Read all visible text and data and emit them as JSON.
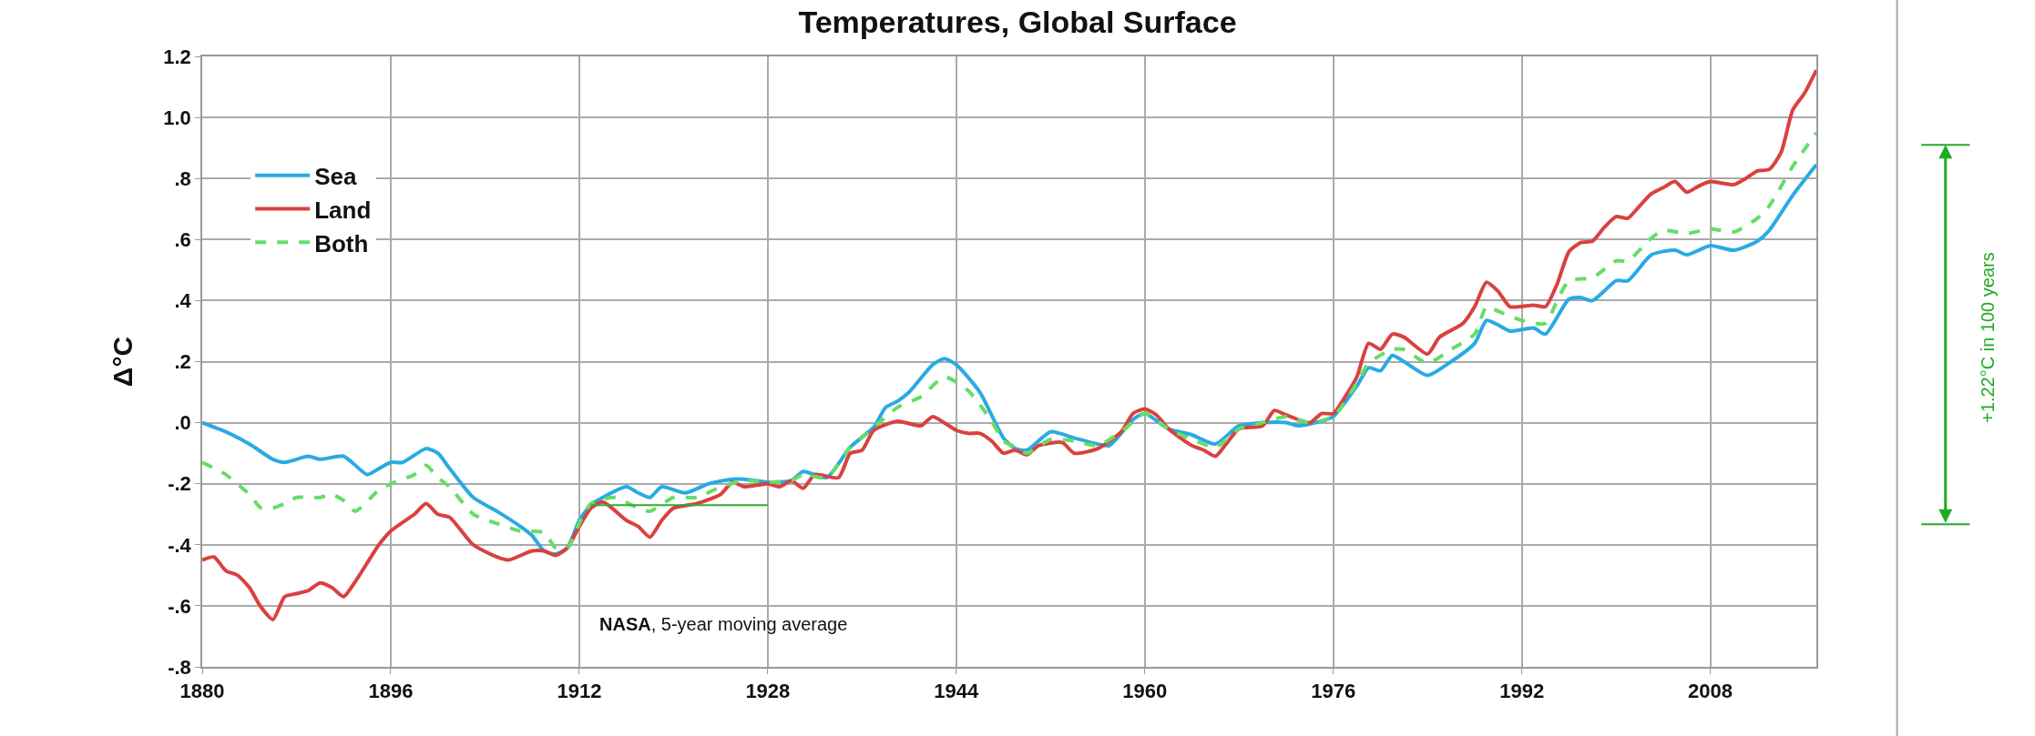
{
  "chart_data": {
    "type": "line",
    "title": "Temperatures, Global Surface",
    "ylabel": "Δ°C",
    "xlim": [
      1880,
      2017
    ],
    "xticks": [
      1880,
      1896,
      1912,
      1928,
      1944,
      1960,
      1976,
      1992,
      2008
    ],
    "ylim": [
      -0.8,
      1.2
    ],
    "yticks": [
      1.2,
      {
        "value": 1,
        "label": "1.0"
      },
      {
        "value": 0.8,
        "label": ".8"
      },
      {
        "value": 0.6,
        "label": ".6"
      },
      {
        "value": 0.4,
        "label": ".4"
      },
      {
        "value": 0.2,
        "label": ".2"
      },
      {
        "value": 0,
        "label": ".0"
      },
      {
        "value": -0.2,
        "label": "-.2"
      },
      {
        "value": -0.4,
        "label": "-.4"
      },
      {
        "value": -0.6,
        "label": "-.6"
      },
      {
        "value": -0.8,
        "label": "-.8"
      }
    ],
    "grid": true,
    "legend": "top left",
    "annotations": [
      "NASA, 5-year moving average",
      "+1.22°C in 100 years"
    ],
    "series": [
      {
        "name": "Sea",
        "color": "#29abe2",
        "line_style": "solid",
        "x": [
          1880,
          1882,
          1884,
          1886,
          1887,
          1889,
          1890,
          1892,
          1894,
          1895,
          1896,
          1897,
          1899,
          1900,
          1901,
          1903,
          1905,
          1907,
          1908,
          1909,
          1910,
          1911,
          1912,
          1913,
          1914,
          1916,
          1917,
          1918,
          1919,
          1921,
          1923,
          1925,
          1926,
          1928,
          1930,
          1931,
          1933,
          1935,
          1937,
          1938,
          1939,
          1940,
          1942,
          1943,
          1944,
          1946,
          1948,
          1949,
          1950,
          1952,
          1954,
          1956,
          1957,
          1959,
          1960,
          1962,
          1964,
          1966,
          1968,
          1970,
          1972,
          1973,
          1975,
          1976,
          1978,
          1979,
          1980,
          1981,
          1982,
          1984,
          1986,
          1988,
          1989,
          1990,
          1991,
          1993,
          1994,
          1996,
          1997,
          1998,
          2000,
          2001,
          2003,
          2005,
          2006,
          2008,
          2010,
          2012,
          2013,
          2015,
          2017
        ],
        "values": [
          0.0,
          -0.03,
          -0.07,
          -0.12,
          -0.13,
          -0.11,
          -0.12,
          -0.11,
          -0.17,
          -0.15,
          -0.13,
          -0.13,
          -0.085,
          -0.1,
          -0.15,
          -0.245,
          -0.29,
          -0.34,
          -0.37,
          -0.42,
          -0.43,
          -0.41,
          -0.32,
          -0.27,
          -0.245,
          -0.21,
          -0.23,
          -0.245,
          -0.21,
          -0.23,
          -0.2,
          -0.185,
          -0.185,
          -0.195,
          -0.19,
          -0.16,
          -0.18,
          -0.08,
          -0.015,
          0.05,
          0.07,
          0.1,
          0.19,
          0.21,
          0.19,
          0.1,
          -0.05,
          -0.085,
          -0.09,
          -0.03,
          -0.05,
          -0.07,
          -0.075,
          0.01,
          0.03,
          -0.02,
          -0.04,
          -0.07,
          -0.01,
          0.0,
          0.0,
          -0.01,
          0.005,
          0.02,
          0.12,
          0.18,
          0.17,
          0.22,
          0.2,
          0.155,
          0.2,
          0.26,
          0.335,
          0.32,
          0.3,
          0.31,
          0.29,
          0.405,
          0.41,
          0.4,
          0.465,
          0.465,
          0.55,
          0.565,
          0.55,
          0.58,
          0.565,
          0.595,
          0.63,
          0.745,
          0.845
        ]
      },
      {
        "name": "Land",
        "color": "#d9413f",
        "line_style": "solid",
        "x": [
          1880,
          1881,
          1882,
          1883,
          1884,
          1885,
          1886,
          1887,
          1888,
          1889,
          1890,
          1891,
          1892,
          1893,
          1895,
          1896,
          1898,
          1899,
          1900,
          1901,
          1903,
          1905,
          1906,
          1908,
          1909,
          1910,
          1911,
          1912,
          1913,
          1914,
          1916,
          1917,
          1918,
          1919,
          1920,
          1922,
          1924,
          1925,
          1926,
          1928,
          1929,
          1930,
          1931,
          1932,
          1934,
          1935,
          1936,
          1937,
          1939,
          1941,
          1942,
          1944,
          1945,
          1946,
          1947,
          1948,
          1949,
          1950,
          1951,
          1953,
          1954,
          1956,
          1958,
          1959,
          1960,
          1961,
          1962,
          1964,
          1965,
          1966,
          1967,
          1968,
          1970,
          1971,
          1972,
          1974,
          1975,
          1976,
          1977,
          1978,
          1979,
          1980,
          1981,
          1982,
          1984,
          1985,
          1987,
          1988,
          1989,
          1990,
          1991,
          1993,
          1994,
          1995,
          1996,
          1997,
          1998,
          1999,
          2000,
          2001,
          2002,
          2003,
          2004,
          2005,
          2006,
          2007,
          2008,
          2010,
          2011,
          2012,
          2013,
          2014,
          2015,
          2016,
          2017
        ],
        "values": [
          -0.45,
          -0.44,
          -0.485,
          -0.5,
          -0.54,
          -0.605,
          -0.645,
          -0.57,
          -0.56,
          -0.55,
          -0.525,
          -0.54,
          -0.57,
          -0.52,
          -0.4,
          -0.355,
          -0.3,
          -0.265,
          -0.3,
          -0.31,
          -0.4,
          -0.44,
          -0.45,
          -0.42,
          -0.42,
          -0.435,
          -0.41,
          -0.34,
          -0.28,
          -0.26,
          -0.32,
          -0.34,
          -0.375,
          -0.32,
          -0.28,
          -0.265,
          -0.235,
          -0.195,
          -0.21,
          -0.2,
          -0.21,
          -0.19,
          -0.215,
          -0.17,
          -0.18,
          -0.1,
          -0.09,
          -0.025,
          0.005,
          -0.01,
          0.02,
          -0.025,
          -0.035,
          -0.035,
          -0.06,
          -0.1,
          -0.09,
          -0.105,
          -0.075,
          -0.065,
          -0.1,
          -0.085,
          -0.03,
          0.03,
          0.045,
          0.025,
          -0.02,
          -0.075,
          -0.09,
          -0.11,
          -0.065,
          -0.02,
          -0.01,
          0.04,
          0.025,
          0.0,
          0.03,
          0.03,
          0.085,
          0.15,
          0.26,
          0.24,
          0.29,
          0.28,
          0.225,
          0.28,
          0.325,
          0.38,
          0.46,
          0.43,
          0.38,
          0.385,
          0.38,
          0.455,
          0.56,
          0.59,
          0.595,
          0.64,
          0.675,
          0.67,
          0.71,
          0.75,
          0.77,
          0.79,
          0.755,
          0.775,
          0.79,
          0.78,
          0.8,
          0.825,
          0.83,
          0.885,
          1.025,
          1.08,
          1.155
        ]
      },
      {
        "name": "Both",
        "color": "#66dd66",
        "line_style": "dashed",
        "x": [
          1880,
          1882,
          1884,
          1885,
          1886,
          1887,
          1888,
          1890,
          1891,
          1892,
          1893,
          1895,
          1896,
          1898,
          1899,
          1900,
          1901,
          1903,
          1905,
          1907,
          1909,
          1910,
          1911,
          1912,
          1913,
          1915,
          1917,
          1918,
          1920,
          1922,
          1924,
          1926,
          1928,
          1930,
          1931,
          1933,
          1935,
          1937,
          1939,
          1941,
          1943,
          1945,
          1947,
          1948,
          1949,
          1950,
          1952,
          1954,
          1956,
          1958,
          1960,
          1962,
          1964,
          1966,
          1968,
          1970,
          1972,
          1974,
          1976,
          1978,
          1979,
          1981,
          1982,
          1984,
          1986,
          1988,
          1989,
          1990,
          1992,
          1994,
          1995,
          1996,
          1998,
          2000,
          2001,
          2003,
          2004,
          2006,
          2008,
          2010,
          2012,
          2013,
          2015,
          2017
        ],
        "values": [
          -0.13,
          -0.17,
          -0.235,
          -0.28,
          -0.28,
          -0.265,
          -0.245,
          -0.245,
          -0.235,
          -0.255,
          -0.29,
          -0.22,
          -0.2,
          -0.17,
          -0.14,
          -0.18,
          -0.21,
          -0.3,
          -0.33,
          -0.355,
          -0.36,
          -0.41,
          -0.41,
          -0.33,
          -0.265,
          -0.245,
          -0.28,
          -0.29,
          -0.245,
          -0.245,
          -0.21,
          -0.19,
          -0.195,
          -0.19,
          -0.17,
          -0.18,
          -0.08,
          -0.015,
          0.05,
          0.085,
          0.15,
          0.105,
          0.005,
          -0.06,
          -0.08,
          -0.1,
          -0.055,
          -0.06,
          -0.075,
          -0.03,
          0.03,
          -0.02,
          -0.055,
          -0.08,
          -0.02,
          0.0,
          0.02,
          0.0,
          0.02,
          0.13,
          0.195,
          0.24,
          0.24,
          0.195,
          0.24,
          0.29,
          0.38,
          0.365,
          0.335,
          0.325,
          0.4,
          0.465,
          0.475,
          0.53,
          0.53,
          0.605,
          0.63,
          0.62,
          0.635,
          0.625,
          0.67,
          0.71,
          0.84,
          0.95
        ]
      },
      {
        "color": "#33aa33",
        "line_style": "solid",
        "x": [
          1913,
          1928
        ],
        "values": [
          -0.27,
          -0.27
        ]
      }
    ]
  }
}
